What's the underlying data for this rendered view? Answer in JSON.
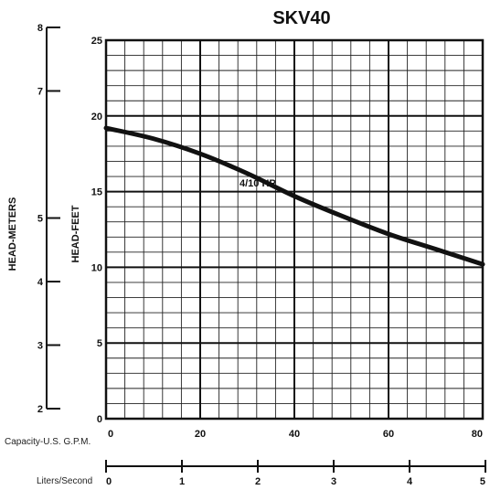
{
  "chart_data": {
    "type": "line",
    "title": "SKV40",
    "annotation": "4/10 HP",
    "series": [
      {
        "x": [
          0,
          10,
          20,
          30,
          40,
          50,
          60,
          70,
          80
        ],
        "values": [
          19.2,
          18.5,
          17.5,
          16.2,
          14.7,
          13.4,
          12.2,
          11.2,
          10.2
        ]
      }
    ],
    "y_feet": {
      "label": "HEAD-FEET",
      "ticks": [
        "0",
        "5",
        "10",
        "15",
        "20",
        "25"
      ],
      "range": [
        0,
        25
      ]
    },
    "y_meters": {
      "label": "HEAD-METERS",
      "ticks": [
        "2",
        "3",
        "4",
        "5",
        "7",
        "8"
      ],
      "tick_values": [
        2,
        3,
        4,
        5,
        7,
        8
      ],
      "range": [
        2,
        8
      ]
    },
    "x_gpm": {
      "label": "Capacity-U.S. G.P.M.",
      "ticks": [
        "0",
        "20",
        "40",
        "60",
        "80"
      ],
      "range": [
        0,
        80
      ]
    },
    "x_lps": {
      "label": "Liters/Second",
      "ticks": [
        "0",
        "1",
        "2",
        "3",
        "4",
        "5"
      ],
      "range": [
        0,
        5
      ]
    },
    "grid": true
  }
}
